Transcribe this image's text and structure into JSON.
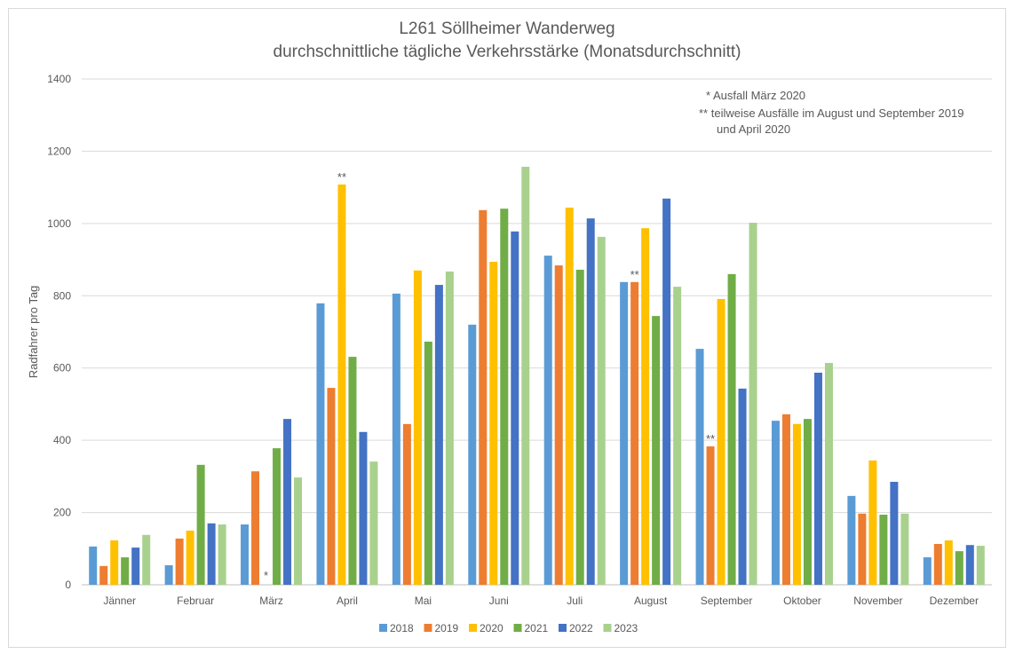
{
  "chart_data": {
    "type": "bar",
    "title": "L261 Söllheimer Wanderweg",
    "subtitle": "durchschnittliche tägliche Verkehrsstärke (Monatsdurchschnitt)",
    "xlabel": "",
    "ylabel": "Radfahrer pro Tag",
    "ylim": [
      0,
      1400
    ],
    "yticks": [
      0,
      200,
      400,
      600,
      800,
      1000,
      1200,
      1400
    ],
    "grid": true,
    "legend_position": "bottom",
    "categories": [
      "Jänner",
      "Februar",
      "März",
      "April",
      "Mai",
      "Juni",
      "Juli",
      "August",
      "September",
      "Oktober",
      "November",
      "Dezember"
    ],
    "series": [
      {
        "name": "2018",
        "color": "#5B9BD5",
        "values": [
          106,
          54,
          167,
          779,
          806,
          720,
          911,
          838,
          653,
          454,
          246,
          76
        ]
      },
      {
        "name": "2019",
        "color": "#ED7D31",
        "values": [
          52,
          128,
          314,
          545,
          445,
          1037,
          884,
          838,
          383,
          472,
          197,
          113
        ]
      },
      {
        "name": "2020",
        "color": "#FFC000",
        "values": [
          123,
          150,
          0,
          1108,
          870,
          894,
          1044,
          987,
          791,
          445,
          344,
          123
        ]
      },
      {
        "name": "2021",
        "color": "#70AD47",
        "values": [
          76,
          332,
          378,
          631,
          673,
          1041,
          872,
          744,
          860,
          459,
          194,
          93
        ]
      },
      {
        "name": "2022",
        "color": "#4472C4",
        "values": [
          103,
          170,
          459,
          423,
          830,
          978,
          1014,
          1069,
          543,
          587,
          285,
          110
        ]
      },
      {
        "name": "2023",
        "color": "#A9D18E",
        "values": [
          138,
          167,
          297,
          341,
          867,
          1157,
          963,
          825,
          1002,
          614,
          197,
          108
        ]
      }
    ],
    "bar_annotations": [
      {
        "category": "März",
        "series": "2020",
        "text": "*"
      },
      {
        "category": "April",
        "series": "2020",
        "text": "**"
      },
      {
        "category": "August",
        "series": "2019",
        "text": "**"
      },
      {
        "category": "September",
        "series": "2019",
        "text": "**"
      }
    ],
    "notes": [
      "* Ausfall März 2020",
      "** teilweise Ausfälle im August und September 2019",
      "und April 2020"
    ]
  }
}
